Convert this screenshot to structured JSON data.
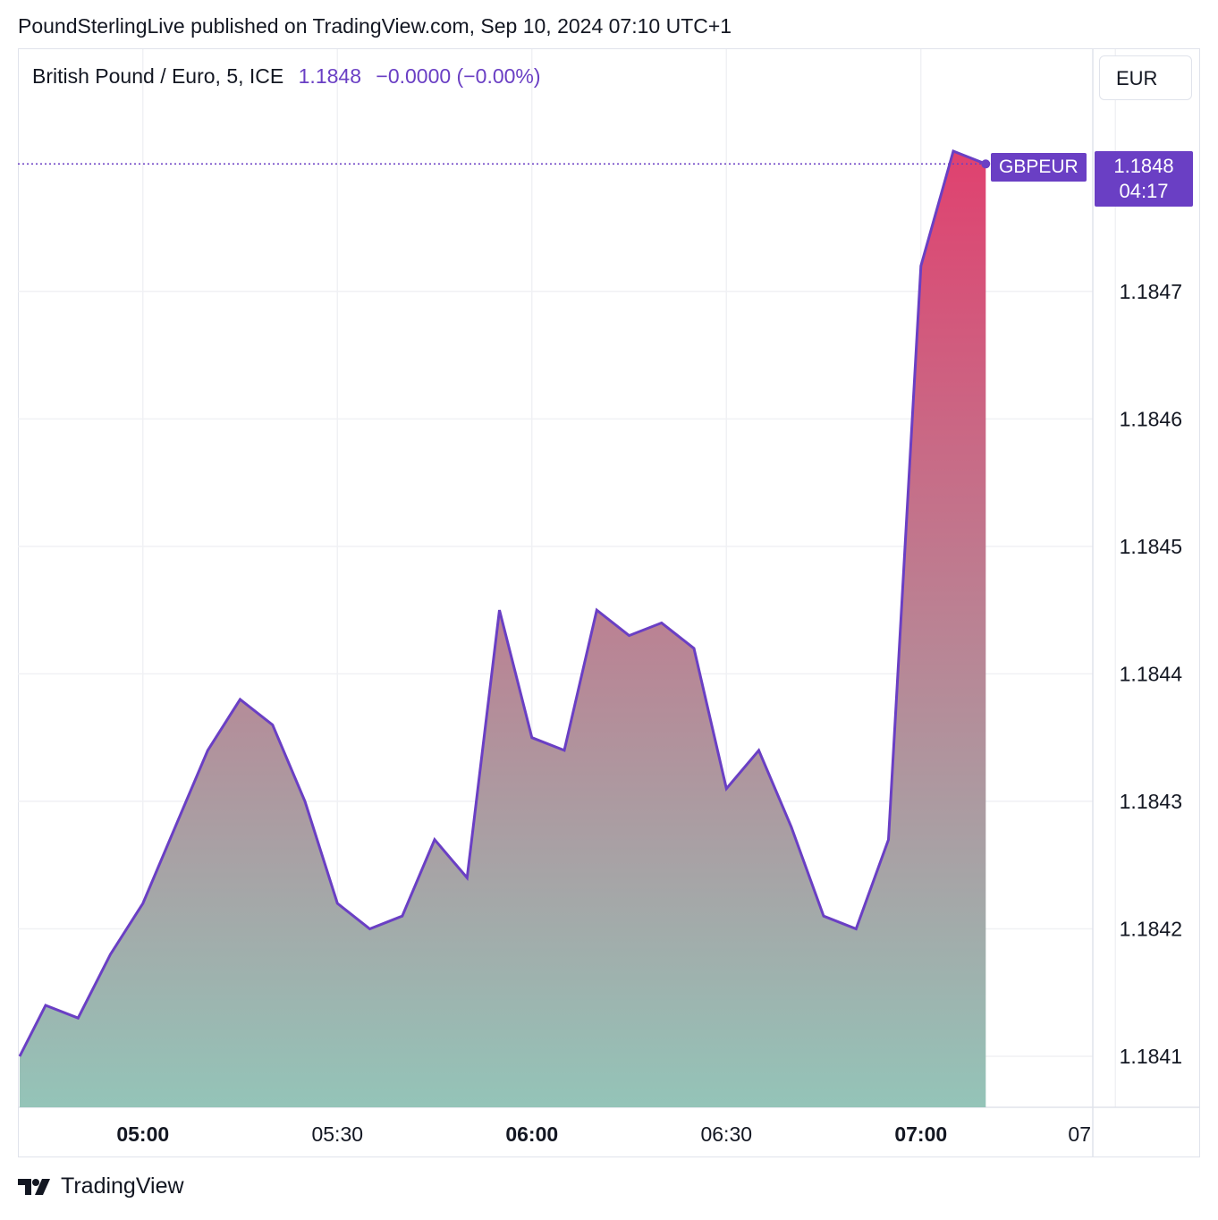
{
  "header": {
    "publisher_line": "PoundSterlingLive published on TradingView.com, Sep 10, 2024 07:10 UTC+1"
  },
  "legend": {
    "symbol": "British Pound / Euro, 5, ICE",
    "value": "1.1848",
    "change": "−0.0000 (−0.00%)"
  },
  "currency_button": {
    "label": "EUR"
  },
  "last_price": {
    "series_label": "GBPEUR",
    "price": "1.1848",
    "countdown": "04:17"
  },
  "footer": {
    "brand": "TradingView"
  },
  "colors": {
    "line": "#6a3fc4",
    "fill_top": "#e0416f",
    "fill_bottom": "#94c4b8",
    "grid": "#f0f1f4",
    "text": "#131722"
  },
  "chart_data": {
    "type": "area",
    "series": [
      {
        "name": "GBPEUR",
        "times": [
          "04:41",
          "04:45",
          "04:50",
          "04:55",
          "05:00",
          "05:05",
          "05:10",
          "05:15",
          "05:20",
          "05:25",
          "05:30",
          "05:35",
          "05:40",
          "05:45",
          "05:50",
          "05:55",
          "06:00",
          "06:05",
          "06:10",
          "06:15",
          "06:20",
          "06:25",
          "06:30",
          "06:35",
          "06:40",
          "06:45",
          "06:50",
          "06:55",
          "07:00",
          "07:05",
          "07:10"
        ],
        "values": [
          1.1841,
          1.18414,
          1.18413,
          1.18418,
          1.18422,
          1.18428,
          1.18434,
          1.18438,
          1.18436,
          1.1843,
          1.18422,
          1.1842,
          1.18421,
          1.18427,
          1.18424,
          1.18445,
          1.18435,
          1.18434,
          1.18445,
          1.18443,
          1.18444,
          1.18442,
          1.18431,
          1.18434,
          1.18428,
          1.18421,
          1.1842,
          1.18427,
          1.18472,
          1.18481,
          1.1848
        ]
      }
    ],
    "x_ticks": [
      {
        "label": "05:00",
        "bold": true
      },
      {
        "label": "05:30",
        "bold": false
      },
      {
        "label": "06:00",
        "bold": true
      },
      {
        "label": "06:30",
        "bold": false
      },
      {
        "label": "07:00",
        "bold": true
      },
      {
        "label": "07",
        "bold": false
      }
    ],
    "y_ticks": [
      "1.1841",
      "1.1842",
      "1.1843",
      "1.1844",
      "1.1845",
      "1.1846",
      "1.1847"
    ],
    "ylim": [
      1.18406,
      1.18489
    ],
    "last_value": 1.1848,
    "grid": true
  }
}
